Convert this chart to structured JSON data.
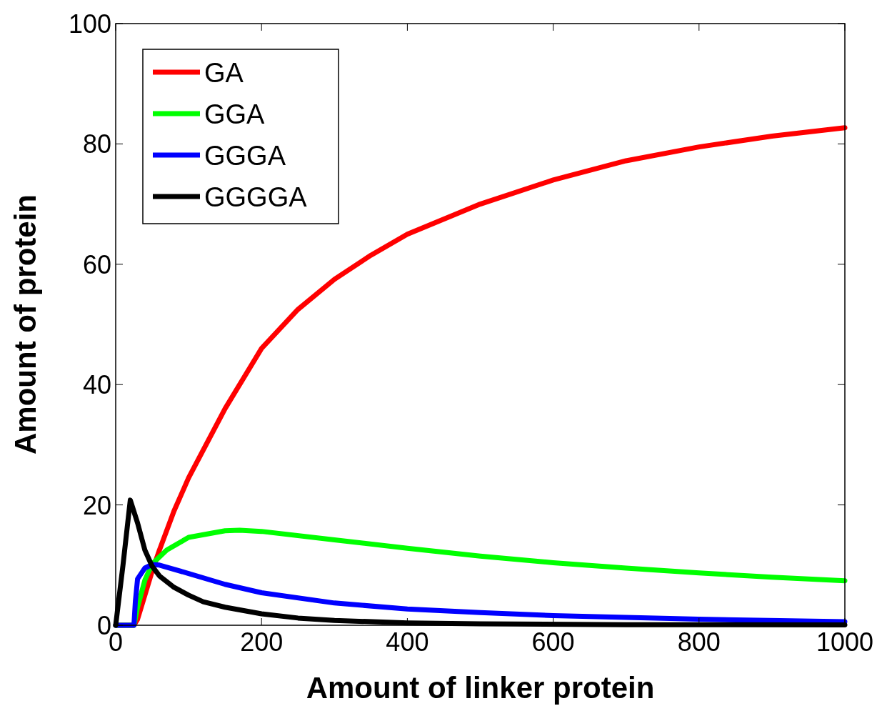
{
  "chart_data": {
    "type": "line",
    "xlabel": "Amount of linker protein",
    "ylabel": "Amount of protein",
    "xlim": [
      0,
      1000
    ],
    "ylim": [
      0,
      100
    ],
    "xticks": [
      0,
      200,
      400,
      600,
      800,
      1000
    ],
    "yticks": [
      0,
      20,
      40,
      60,
      80,
      100
    ],
    "grid": false,
    "legend": "top left",
    "line_style": "solid",
    "marker": "none",
    "series": [
      {
        "name": "GA",
        "color": "#ff0000",
        "x": [
          0,
          25,
          30,
          40,
          50,
          60,
          80,
          100,
          150,
          200,
          250,
          300,
          350,
          400,
          500,
          600,
          700,
          800,
          900,
          1000
        ],
        "values": [
          0,
          0,
          1,
          5,
          9,
          12.5,
          19,
          24.5,
          36,
          46,
          52.5,
          57.5,
          61.5,
          65,
          70,
          74,
          77.2,
          79.5,
          81.3,
          82.7
        ]
      },
      {
        "name": "GGA",
        "color": "#00ff00",
        "x": [
          0,
          25,
          30,
          40,
          50,
          70,
          100,
          150,
          170,
          200,
          300,
          400,
          500,
          600,
          700,
          800,
          900,
          1000
        ],
        "values": [
          0,
          0,
          3,
          7.5,
          10.2,
          12.5,
          14.6,
          15.7,
          15.8,
          15.6,
          14.2,
          12.8,
          11.5,
          10.4,
          9.5,
          8.7,
          8,
          7.4
        ]
      },
      {
        "name": "GGGA",
        "color": "#0000ff",
        "x": [
          0,
          25,
          27,
          30,
          40,
          50,
          60,
          100,
          150,
          200,
          300,
          400,
          500,
          600,
          800,
          1000
        ],
        "values": [
          0,
          0,
          4,
          7.7,
          9.5,
          10.1,
          10,
          8.6,
          6.8,
          5.4,
          3.7,
          2.7,
          2.1,
          1.6,
          1,
          0.6
        ]
      },
      {
        "name": "GGGGA",
        "color": "#000000",
        "x": [
          0,
          10,
          20,
          30,
          40,
          50,
          60,
          80,
          100,
          120,
          150,
          200,
          250,
          300,
          400,
          500,
          700,
          1000
        ],
        "values": [
          0,
          10,
          20.8,
          17,
          12.5,
          9.8,
          8.2,
          6.3,
          5,
          3.9,
          3,
          1.9,
          1.2,
          0.8,
          0.4,
          0.25,
          0.1,
          0.05
        ]
      }
    ]
  }
}
